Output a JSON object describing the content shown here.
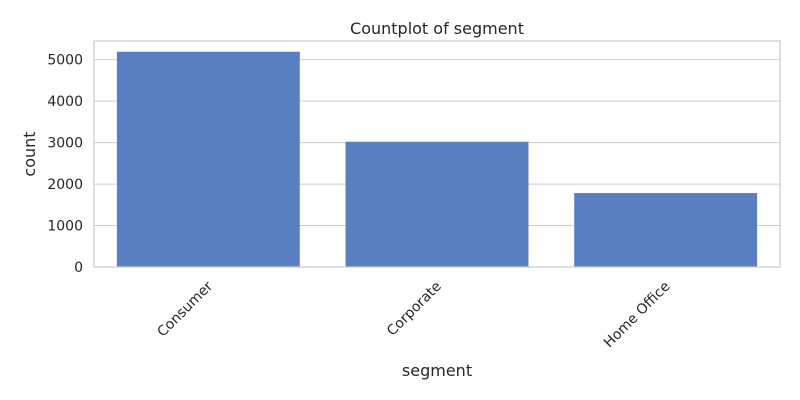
{
  "chart_data": {
    "type": "bar",
    "title": "Countplot of segment",
    "xlabel": "segment",
    "ylabel": "count",
    "categories": [
      "Consumer",
      "Corporate",
      "Home Office"
    ],
    "values": [
      5191,
      3020,
      1783
    ],
    "yticks": [
      0,
      1000,
      2000,
      3000,
      4000,
      5000
    ],
    "ylim": [
      0,
      5450
    ],
    "grid": "horizontal",
    "bar_color": "#5a7ec2"
  }
}
